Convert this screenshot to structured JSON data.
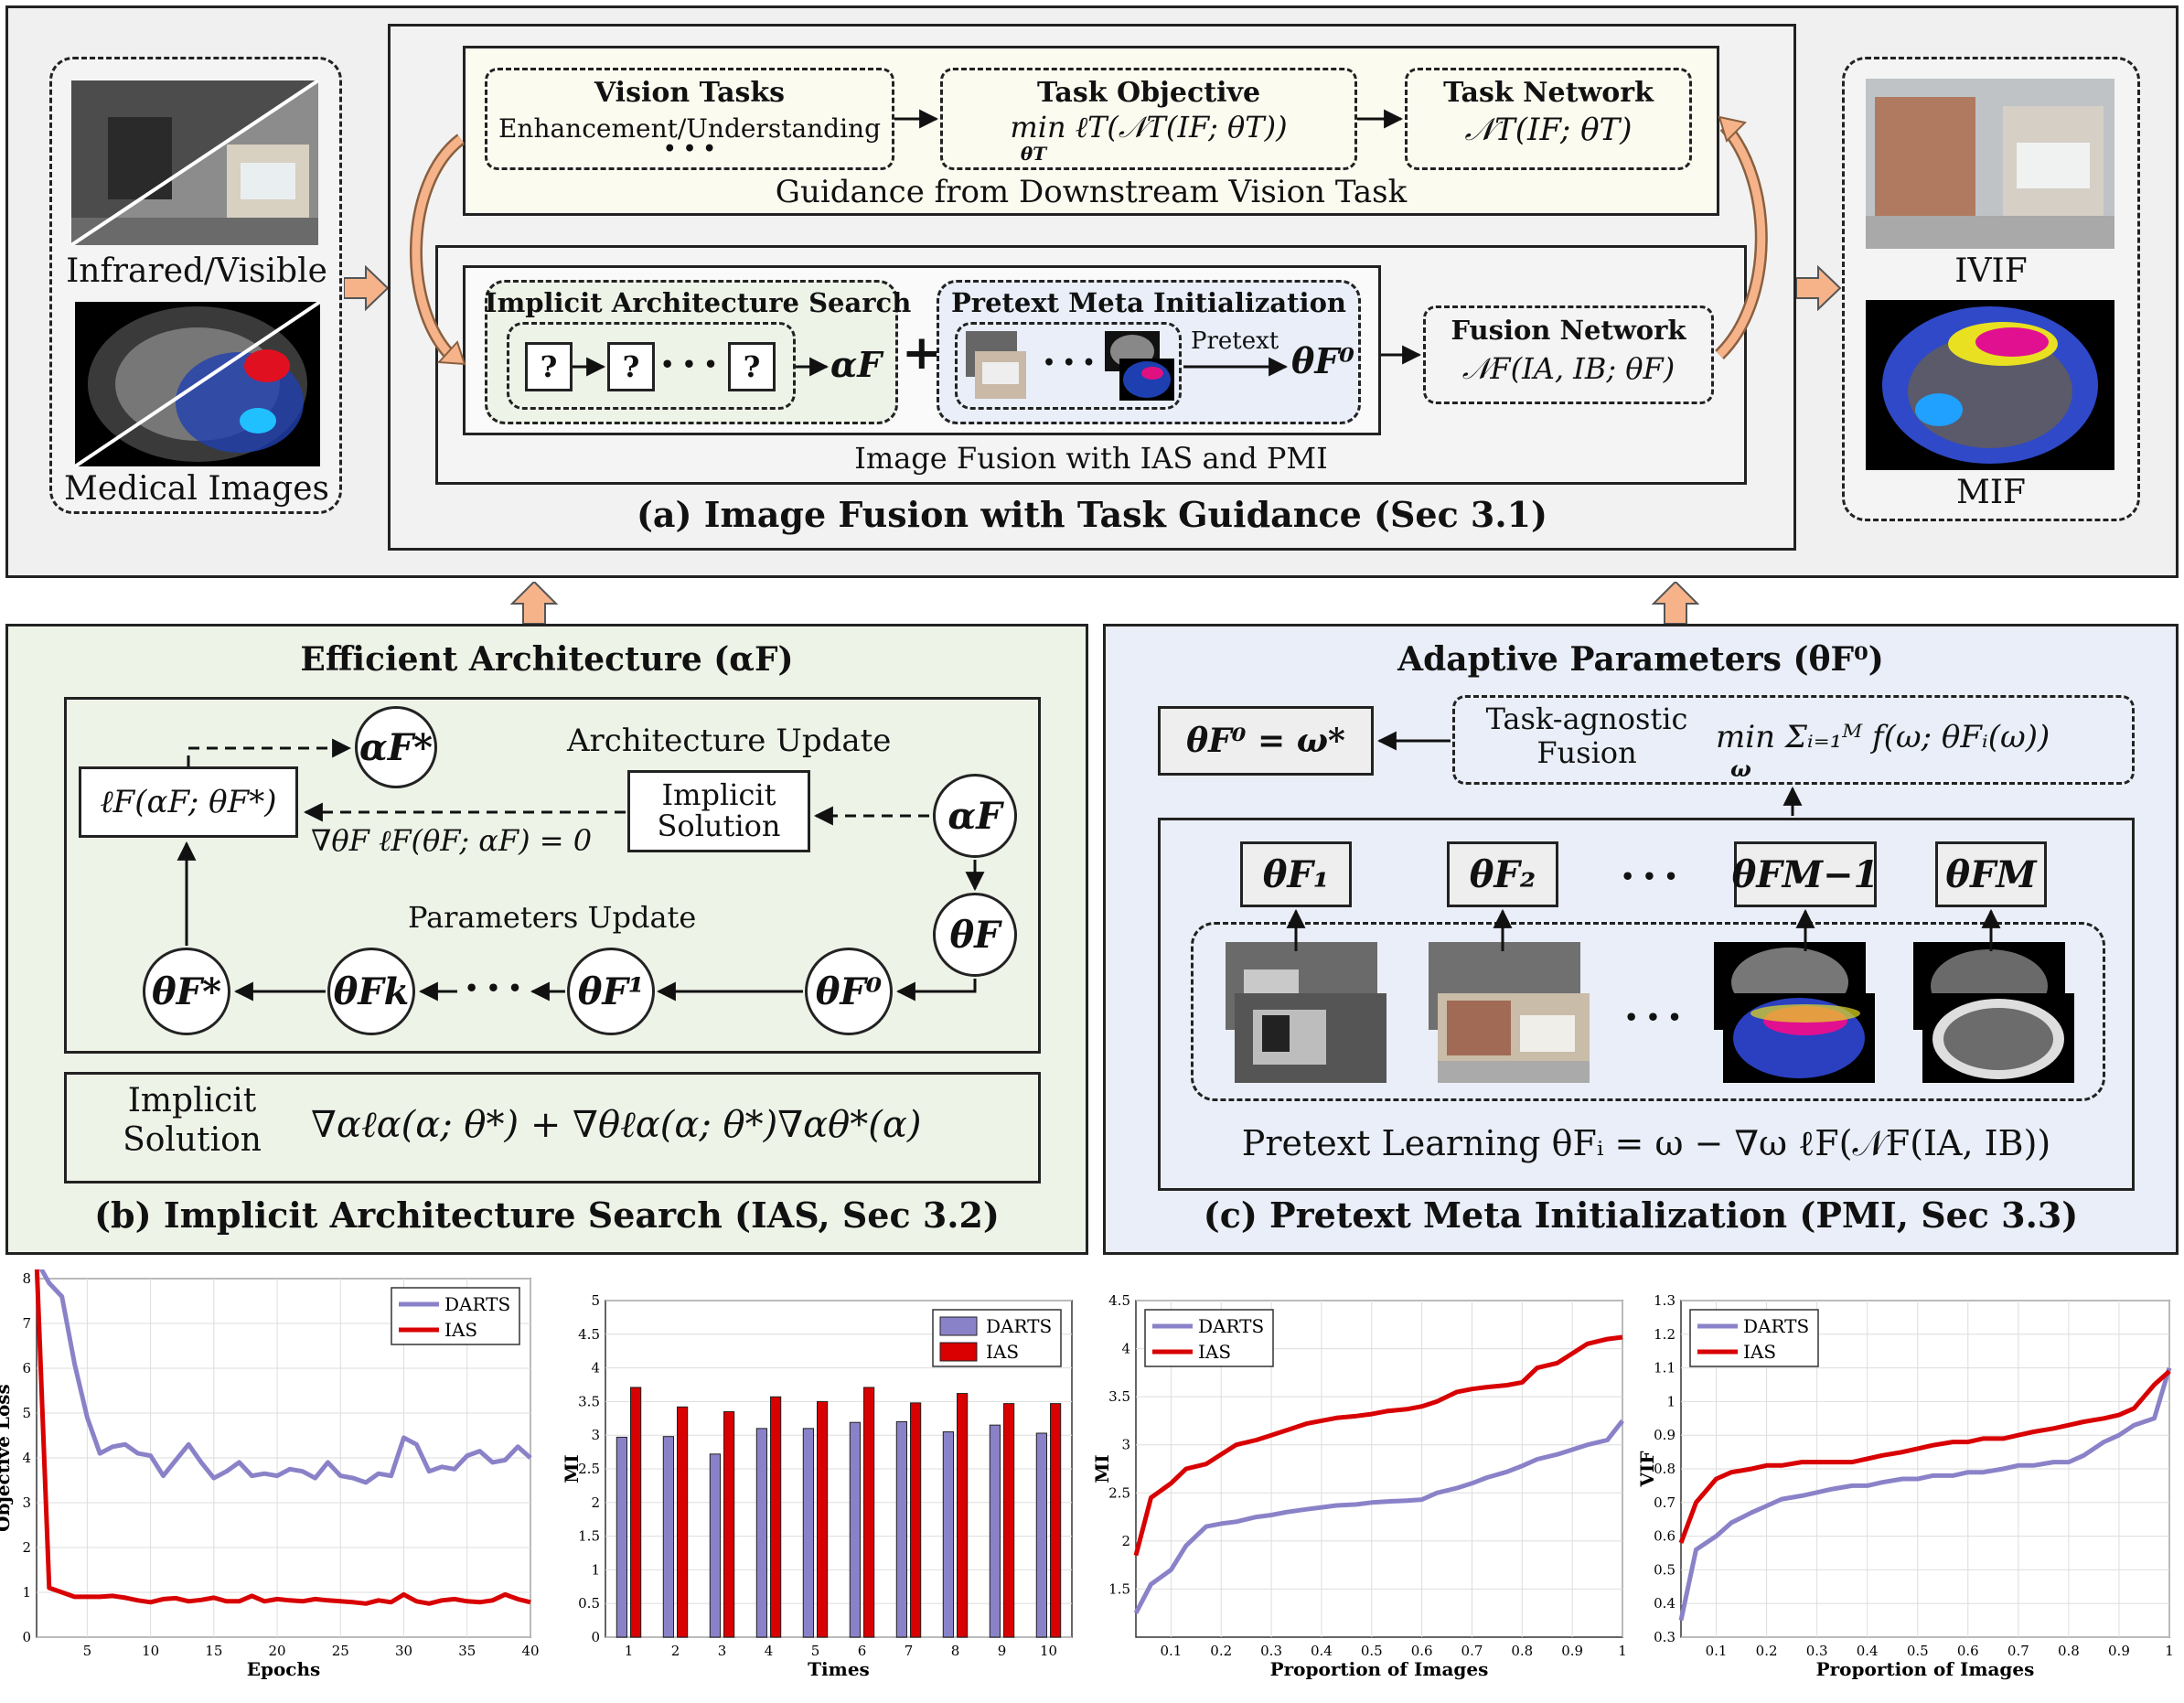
{
  "panel_a": {
    "input_label_ir": "Infrared/Visible",
    "input_label_med": "Medical Images",
    "vision_tasks_title": "Vision Tasks",
    "vision_tasks_sub": "Enhancement/Understanding",
    "vision_tasks_dots": "• • •",
    "task_objective_title": "Task Objective",
    "task_objective_formula": "min ℓT(𝒩T(IF; θT))",
    "task_objective_sub": "θT",
    "task_network_title": "Task Network",
    "task_network_formula": "𝒩T(IF; θT)",
    "guidance_caption": "Guidance from Downstream Vision Task",
    "ias_title": "Implicit Architecture Search",
    "ias_q": "?",
    "ias_dots": "• • •",
    "ias_output": "αF",
    "plus": "+",
    "pmi_title": "Pretext Meta Initialization",
    "pmi_dots": "• • •",
    "pmi_pretext": "Pretext",
    "pmi_output": "θF⁰",
    "fusion_title": "Fusion Network",
    "fusion_formula": "𝒩F(IA, IB; θF)",
    "fusion_caption": "Image Fusion with IAS and PMI",
    "caption": "(a) Image Fusion with Task Guidance (Sec 3.1)",
    "output_label_ivif": "IVIF",
    "output_label_mif": "MIF"
  },
  "panel_b": {
    "title": "Efficient Architecture (αF)",
    "alpha_star": "αF*",
    "loss": "ℓF(αF; θF*)",
    "arch_update": "Architecture Update",
    "implicit_solution": "Implicit Solution",
    "alpha": "αF",
    "grad_condition": "∇θF ℓF(θF; αF) = 0",
    "params_update": "Parameters Update",
    "theta": "θF",
    "theta_star": "θF*",
    "theta_k": "θFk",
    "dots": "• • •",
    "theta_1": "θF¹",
    "theta_0": "θF⁰",
    "bottom_label": "Implicit Solution",
    "bottom_formula": "∇αℓα(α; θ*) + ∇θℓα(α; θ*)∇αθ*(α)",
    "caption": "(b) Implicit Architecture Search (IAS, Sec 3.2)"
  },
  "panel_c": {
    "title": "Adaptive Parameters (θF⁰)",
    "result": "θF⁰ = ω*",
    "agnostic_label": "Task-agnostic Fusion",
    "agnostic_formula": "min Σᵢ₌₁ᴹ f(ω; θFᵢ(ω))",
    "agnostic_sub": "ω",
    "theta_1": "θF₁",
    "theta_2": "θF₂",
    "theta_m1": "θFM−1",
    "theta_m": "θFM",
    "dots": "• • •",
    "pretext_learning": "Pretext Learning  θFᵢ = ω − ∇ω ℓF(𝒩F(IA, IB))",
    "caption": "(c) Pretext Meta Initialization (PMI, Sec 3.3)"
  },
  "colors": {
    "panel_a_bg": "#f0f0f0",
    "panel_b_bg": "#eef3e8",
    "panel_c_bg": "#e9eef8",
    "guidance_bg": "#fbfbf0",
    "arrow_orange": "#f6b38a",
    "darts": "#8a82c8",
    "ias": "#d80000"
  },
  "chart_data": [
    {
      "type": "line",
      "xlabel": "Epochs",
      "ylabel": "Objective Loss",
      "xlim": [
        1,
        40
      ],
      "ylim": [
        0,
        8
      ],
      "xticks": [
        5,
        10,
        15,
        20,
        25,
        30,
        35,
        40
      ],
      "yticks": [
        0,
        1,
        2,
        3,
        4,
        5,
        6,
        7,
        8
      ],
      "legend": "top-right",
      "x": [
        1,
        2,
        3,
        4,
        5,
        6,
        7,
        8,
        9,
        10,
        11,
        12,
        13,
        14,
        15,
        16,
        17,
        18,
        19,
        20,
        21,
        22,
        23,
        24,
        25,
        26,
        27,
        28,
        29,
        30,
        31,
        32,
        33,
        34,
        35,
        36,
        37,
        38,
        39,
        40
      ],
      "series": [
        {
          "name": "DARTS",
          "values": [
            8.4,
            7.9,
            7.6,
            6.1,
            4.9,
            4.1,
            4.25,
            4.3,
            4.1,
            4.05,
            3.6,
            3.95,
            4.3,
            3.9,
            3.55,
            3.7,
            3.9,
            3.6,
            3.65,
            3.6,
            3.75,
            3.7,
            3.55,
            3.9,
            3.6,
            3.55,
            3.45,
            3.65,
            3.6,
            4.45,
            4.3,
            3.7,
            3.8,
            3.75,
            4.05,
            4.15,
            3.9,
            3.95,
            4.25,
            4.0
          ]
        },
        {
          "name": "IAS",
          "values": [
            8.4,
            1.1,
            1.0,
            0.9,
            0.9,
            0.9,
            0.92,
            0.88,
            0.82,
            0.78,
            0.85,
            0.87,
            0.8,
            0.83,
            0.88,
            0.8,
            0.8,
            0.92,
            0.8,
            0.85,
            0.82,
            0.8,
            0.85,
            0.82,
            0.8,
            0.78,
            0.75,
            0.82,
            0.78,
            0.95,
            0.8,
            0.75,
            0.82,
            0.85,
            0.8,
            0.78,
            0.82,
            0.95,
            0.85,
            0.78
          ]
        }
      ]
    },
    {
      "type": "bar",
      "xlabel": "Times",
      "ylabel": "MI",
      "ylim": [
        0,
        5
      ],
      "yticks": [
        0,
        0.5,
        1,
        1.5,
        2,
        2.5,
        3,
        3.5,
        4,
        4.5,
        5
      ],
      "legend": "top-right",
      "categories": [
        "1",
        "2",
        "3",
        "4",
        "5",
        "6",
        "7",
        "8",
        "9",
        "10"
      ],
      "series": [
        {
          "name": "DARTS",
          "values": [
            2.97,
            2.98,
            2.72,
            3.1,
            3.1,
            3.19,
            3.2,
            3.05,
            3.15,
            3.03
          ]
        },
        {
          "name": "IAS",
          "values": [
            3.71,
            3.42,
            3.35,
            3.57,
            3.5,
            3.71,
            3.48,
            3.62,
            3.47,
            3.47
          ]
        }
      ]
    },
    {
      "type": "line",
      "xlabel": "Proportion of Images",
      "ylabel": "MI",
      "xlim": [
        0.03,
        1
      ],
      "ylim": [
        1,
        4.5
      ],
      "xticks": [
        0.1,
        0.2,
        0.3,
        0.4,
        0.5,
        0.6,
        0.7,
        0.8,
        0.9,
        1
      ],
      "yticks": [
        1.5,
        2,
        2.5,
        3,
        3.5,
        4,
        4.5
      ],
      "legend": "top-left",
      "x": [
        0.03,
        0.06,
        0.1,
        0.13,
        0.17,
        0.2,
        0.23,
        0.27,
        0.3,
        0.33,
        0.37,
        0.4,
        0.43,
        0.47,
        0.5,
        0.53,
        0.57,
        0.6,
        0.63,
        0.67,
        0.7,
        0.73,
        0.77,
        0.8,
        0.83,
        0.87,
        0.9,
        0.93,
        0.97,
        1.0
      ],
      "series": [
        {
          "name": "DARTS",
          "values": [
            1.25,
            1.55,
            1.7,
            1.95,
            2.15,
            2.18,
            2.2,
            2.25,
            2.27,
            2.3,
            2.33,
            2.35,
            2.37,
            2.38,
            2.4,
            2.41,
            2.42,
            2.43,
            2.5,
            2.55,
            2.6,
            2.66,
            2.72,
            2.78,
            2.85,
            2.9,
            2.95,
            3.0,
            3.05,
            3.25
          ]
        },
        {
          "name": "IAS",
          "values": [
            1.85,
            2.45,
            2.6,
            2.75,
            2.8,
            2.9,
            3.0,
            3.05,
            3.1,
            3.15,
            3.22,
            3.25,
            3.28,
            3.3,
            3.32,
            3.35,
            3.37,
            3.4,
            3.45,
            3.55,
            3.58,
            3.6,
            3.62,
            3.65,
            3.8,
            3.85,
            3.95,
            4.05,
            4.1,
            4.12
          ]
        }
      ]
    },
    {
      "type": "line",
      "xlabel": "Proportion of Images",
      "ylabel": "VIF",
      "xlim": [
        0.03,
        1
      ],
      "ylim": [
        0.3,
        1.3
      ],
      "xticks": [
        0.1,
        0.2,
        0.3,
        0.4,
        0.5,
        0.6,
        0.7,
        0.8,
        0.9,
        1
      ],
      "yticks": [
        0.3,
        0.4,
        0.5,
        0.6,
        0.7,
        0.8,
        0.9,
        1,
        1.1,
        1.2,
        1.3
      ],
      "legend": "top-left",
      "x": [
        0.03,
        0.06,
        0.1,
        0.13,
        0.17,
        0.2,
        0.23,
        0.27,
        0.3,
        0.33,
        0.37,
        0.4,
        0.43,
        0.47,
        0.5,
        0.53,
        0.57,
        0.6,
        0.63,
        0.67,
        0.7,
        0.73,
        0.77,
        0.8,
        0.83,
        0.87,
        0.9,
        0.93,
        0.97,
        1.0
      ],
      "series": [
        {
          "name": "DARTS",
          "values": [
            0.35,
            0.56,
            0.6,
            0.64,
            0.67,
            0.69,
            0.71,
            0.72,
            0.73,
            0.74,
            0.75,
            0.75,
            0.76,
            0.77,
            0.77,
            0.78,
            0.78,
            0.79,
            0.79,
            0.8,
            0.81,
            0.81,
            0.82,
            0.82,
            0.84,
            0.88,
            0.9,
            0.93,
            0.95,
            1.1
          ]
        },
        {
          "name": "IAS",
          "values": [
            0.58,
            0.7,
            0.77,
            0.79,
            0.8,
            0.81,
            0.81,
            0.82,
            0.82,
            0.82,
            0.82,
            0.83,
            0.84,
            0.85,
            0.86,
            0.87,
            0.88,
            0.88,
            0.89,
            0.89,
            0.9,
            0.91,
            0.92,
            0.93,
            0.94,
            0.95,
            0.96,
            0.98,
            1.05,
            1.09
          ]
        }
      ]
    }
  ]
}
